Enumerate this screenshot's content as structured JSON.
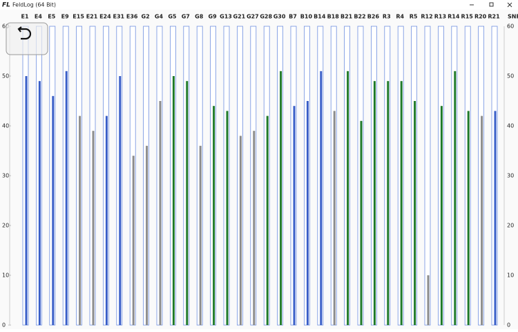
{
  "window": {
    "title": "FeldLog (64 Bit)",
    "icon": "FL"
  },
  "chart_data": {
    "type": "bar",
    "y_axis_label": "SNR",
    "categories": [
      "E1",
      "E4",
      "E5",
      "E9",
      "E15",
      "E21",
      "E24",
      "E31",
      "E36",
      "G2",
      "G4",
      "G5",
      "G7",
      "G8",
      "G9",
      "G13",
      "G21",
      "G27",
      "G28",
      "G30",
      "B7",
      "B10",
      "B14",
      "B18",
      "B21",
      "B22",
      "B26",
      "R3",
      "R4",
      "R5",
      "R12",
      "R13",
      "R14",
      "R15",
      "R20",
      "R21"
    ],
    "values": [
      50,
      49,
      46,
      51,
      42,
      39,
      42,
      50,
      34,
      36,
      45,
      50,
      49,
      36,
      44,
      43,
      38,
      39,
      42,
      51,
      44,
      45,
      51,
      43,
      51,
      41,
      49,
      49,
      49,
      45,
      10,
      44,
      51,
      43,
      42,
      43
    ],
    "colors": [
      "#3a5fc8",
      "#3a5fc8",
      "#3a5fc8",
      "#3a5fc8",
      "#8c8c8c",
      "#8c8c8c",
      "#3a5fc8",
      "#3a5fc8",
      "#8c8c8c",
      "#8c8c8c",
      "#8c8c8c",
      "#1f7a2a",
      "#1f7a2a",
      "#8c8c8c",
      "#1f7a2a",
      "#1f7a2a",
      "#8c8c8c",
      "#8c8c8c",
      "#1f7a2a",
      "#1f7a2a",
      "#3a5fc8",
      "#3a5fc8",
      "#3a5fc8",
      "#8c8c8c",
      "#1f7a2a",
      "#1f7a2a",
      "#1f7a2a",
      "#1f7a2a",
      "#1f7a2a",
      "#1f7a2a",
      "#8c8c8c",
      "#1f7a2a",
      "#1f7a2a",
      "#1f7a2a",
      "#8c8c8c",
      "#3a5fc8"
    ],
    "ylim": [
      0,
      60
    ],
    "yticks": [
      0,
      10,
      20,
      30,
      40,
      50,
      60
    ]
  }
}
